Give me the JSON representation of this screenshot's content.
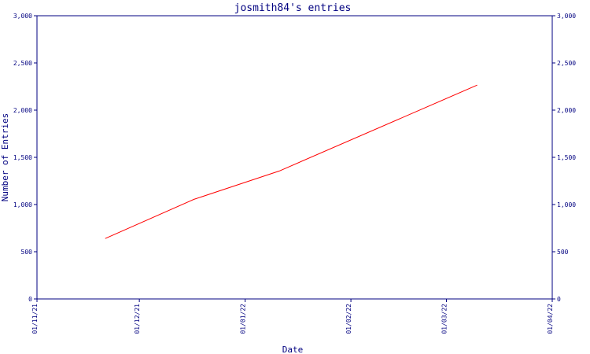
{
  "chart_data": {
    "type": "line",
    "title": "josmith84's entries",
    "xlabel": "Date",
    "ylabel": "Number of Entries",
    "x_ticks": [
      "01/11/21",
      "01/12/21",
      "01/01/22",
      "01/02/22",
      "01/03/22",
      "01/04/22"
    ],
    "y_ticks": [
      "0",
      "500",
      "1,000",
      "1,500",
      "2,000",
      "2,500",
      "3,000"
    ],
    "ylim": [
      0,
      3000
    ],
    "xlim": [
      "2021-11-01",
      "2022-04-01"
    ],
    "grid": false,
    "legend": "none",
    "colors": {
      "line": "#ff0000",
      "axes": "#000080",
      "text": "#000080"
    },
    "series": [
      {
        "x": [
          "2021-11-21",
          "2021-12-17",
          "2022-01-11",
          "2022-03-10"
        ],
        "y": [
          640,
          1055,
          1355,
          2265
        ]
      }
    ]
  }
}
